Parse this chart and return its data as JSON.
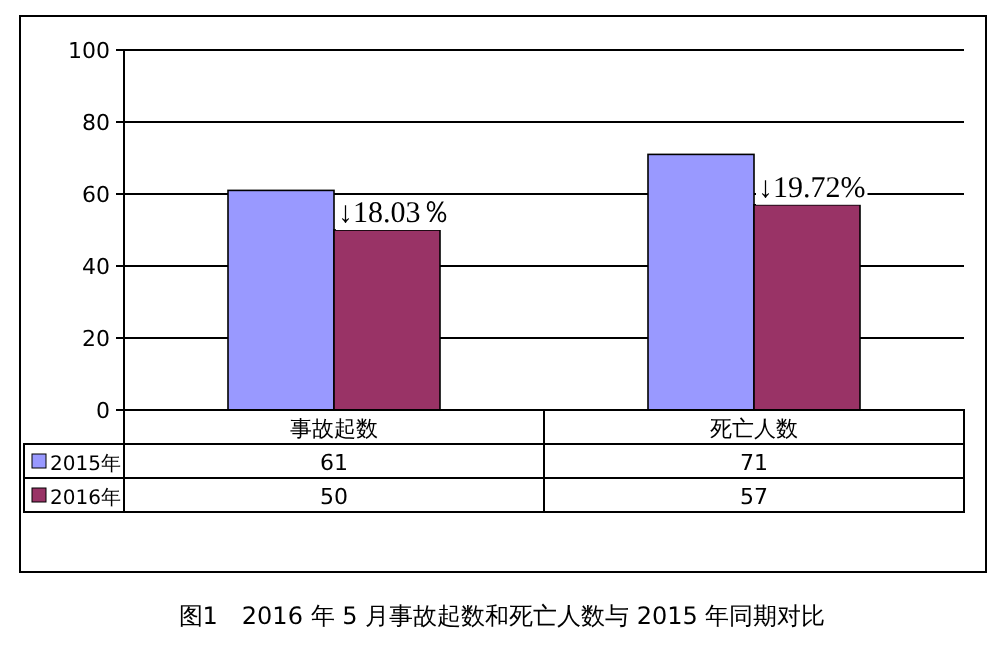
{
  "chart_data": {
    "type": "bar",
    "title": "图1　2016 年 5 月事故起数和死亡人数与 2015 年同期对比",
    "categories": [
      "事故起数",
      "死亡人数"
    ],
    "series": [
      {
        "name": "2015年",
        "color": "#9999ff",
        "values": [
          61,
          71
        ]
      },
      {
        "name": "2016年",
        "color": "#993366",
        "values": [
          50,
          57
        ]
      }
    ],
    "ylim": [
      0,
      100
    ],
    "yticks": [
      0,
      20,
      40,
      60,
      80,
      100
    ],
    "grid": "y",
    "legend": "bottom",
    "data_labels": true,
    "annotations": [
      {
        "text": "↓18.03％",
        "x": "事故起数",
        "y": 50
      },
      {
        "text": "↓19.72%",
        "x": "死亡人数",
        "y": 57
      }
    ]
  }
}
